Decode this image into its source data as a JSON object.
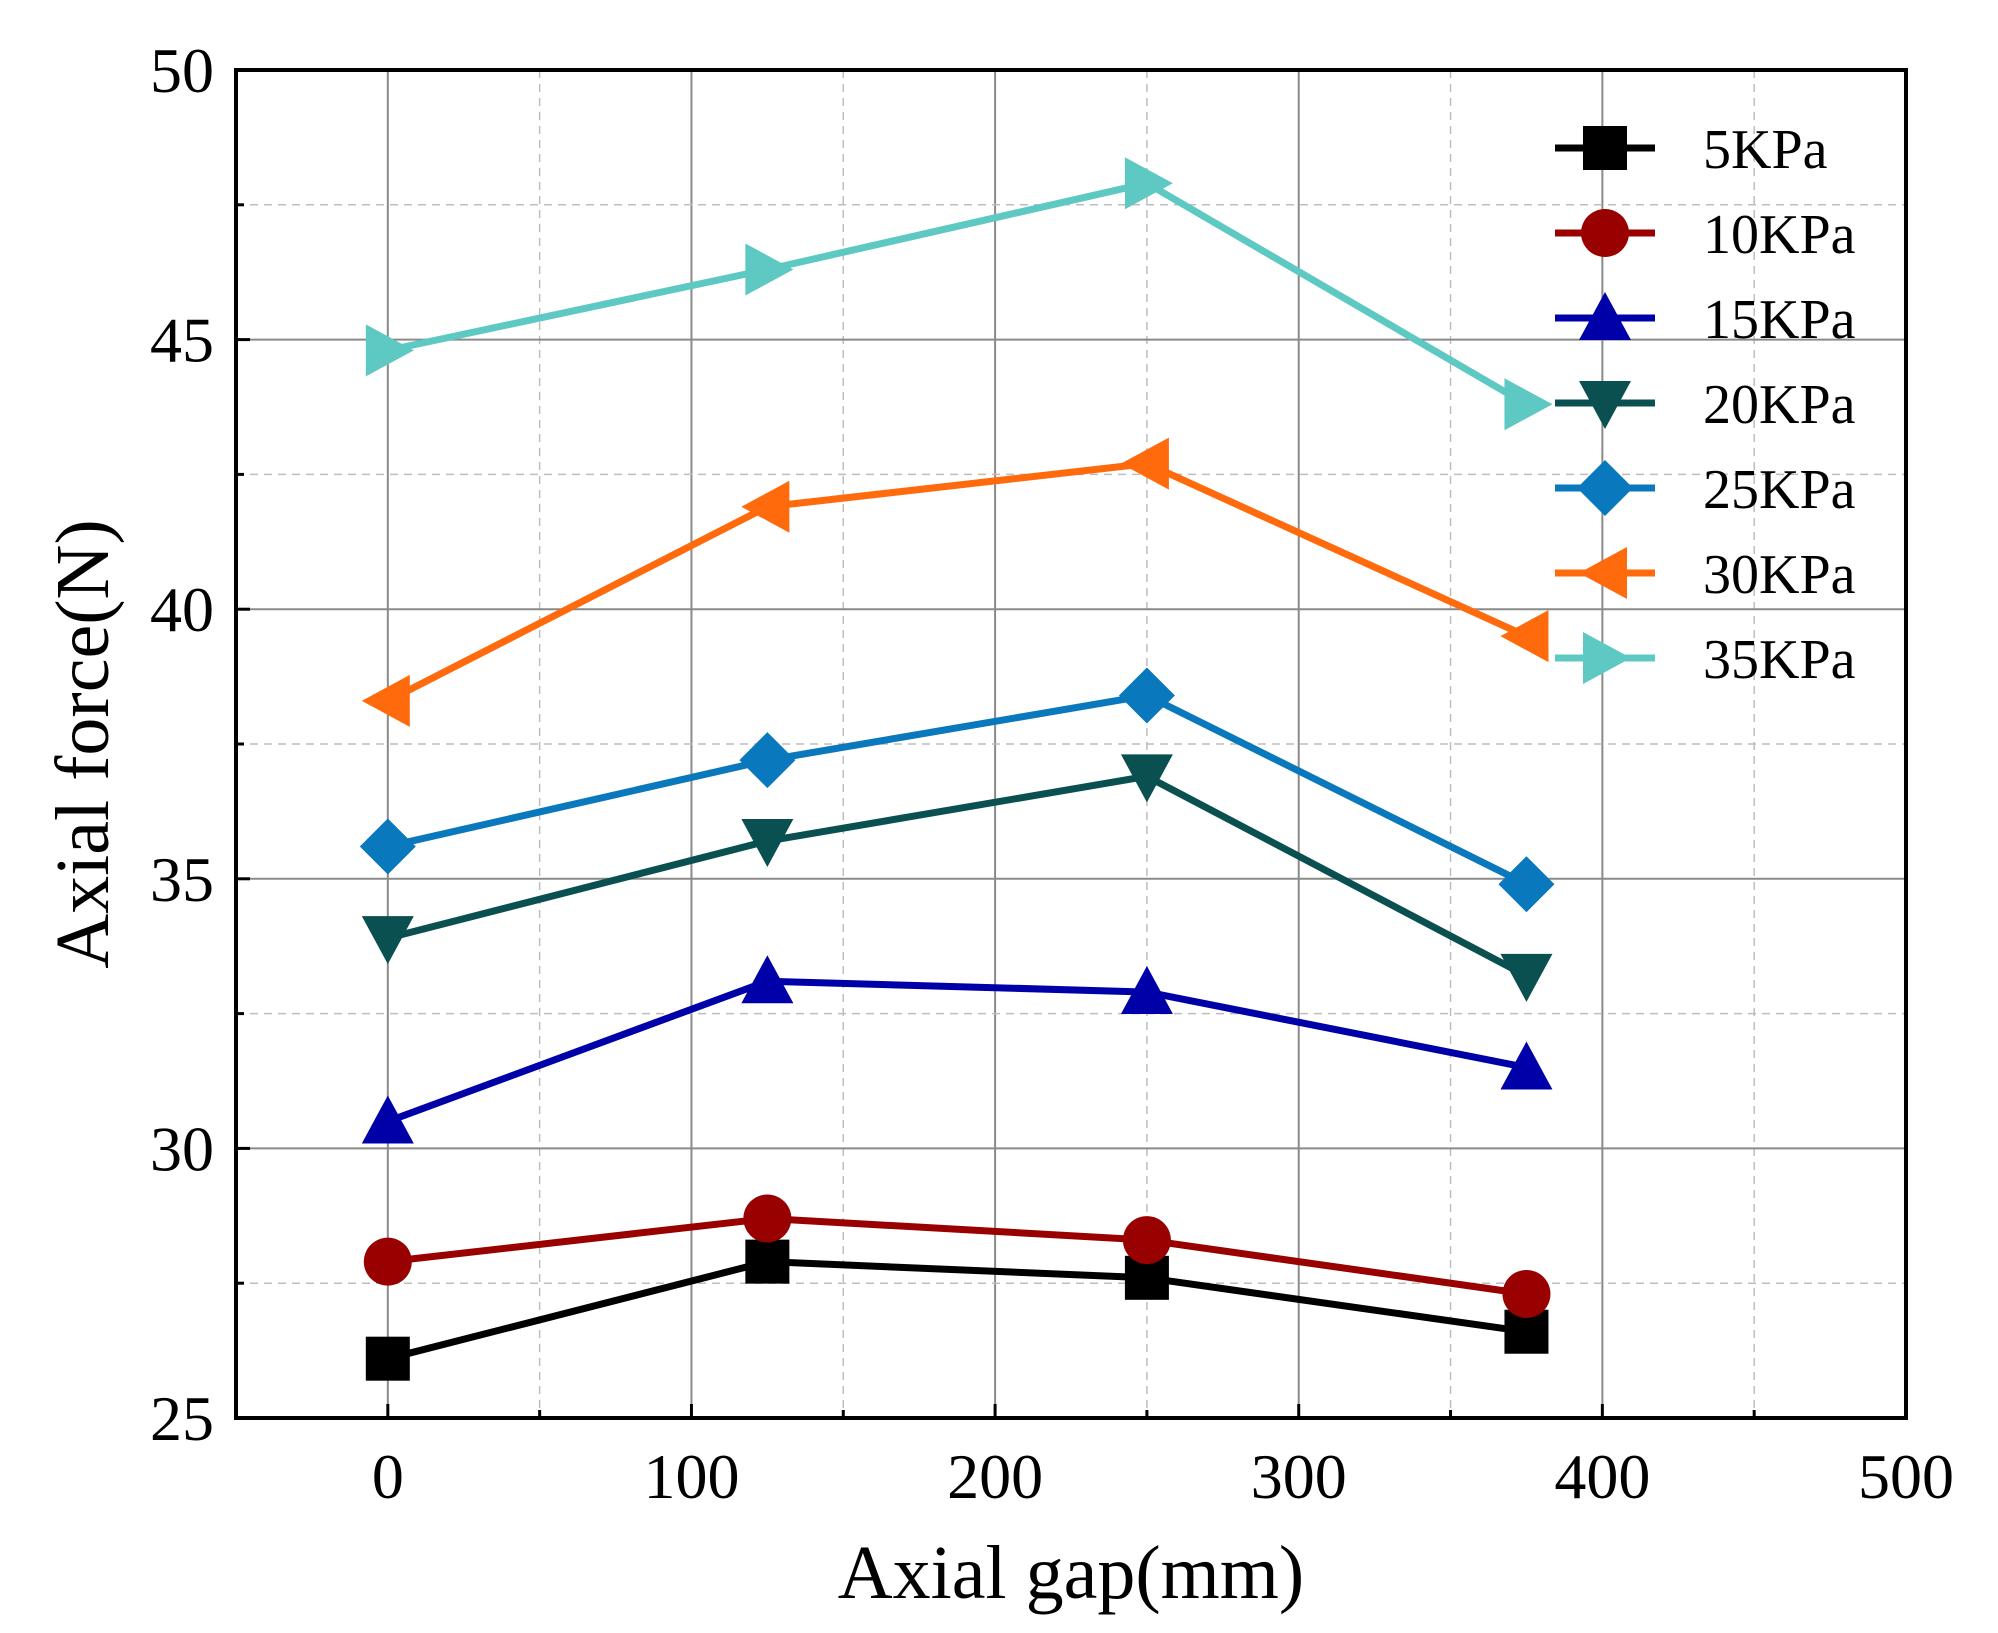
{
  "chart_data": {
    "type": "line",
    "title": "",
    "xlabel": "Axial gap(mm)",
    "ylabel": "Axial force(N)",
    "xlim": [
      -50,
      500
    ],
    "ylim": [
      25,
      50
    ],
    "x_major_ticks": [
      0,
      100,
      200,
      300,
      400,
      500
    ],
    "x_minor_ticks": [
      50,
      150,
      250,
      350,
      450
    ],
    "y_major_ticks": [
      25,
      30,
      35,
      40,
      45,
      50
    ],
    "y_minor_ticks": [
      27.5,
      32.5,
      37.5,
      42.5,
      47.5
    ],
    "x_tick_labels": [
      "0",
      "100",
      "200",
      "300",
      "400",
      "500"
    ],
    "y_tick_labels": [
      "25",
      "30",
      "35",
      "40",
      "45",
      "50"
    ],
    "grid": true,
    "legend_position": "top-right",
    "x": [
      0,
      125,
      250,
      375
    ],
    "series": [
      {
        "name": "5KPa",
        "marker": "square",
        "color": "#000000",
        "values": [
          26.1,
          27.9,
          27.6,
          26.6
        ]
      },
      {
        "name": "10KPa",
        "marker": "circle",
        "color": "#990000",
        "values": [
          27.9,
          28.7,
          28.3,
          27.3
        ]
      },
      {
        "name": "15KPa",
        "marker": "triangle-up",
        "color": "#0000a8",
        "values": [
          30.5,
          33.1,
          32.9,
          31.5
        ]
      },
      {
        "name": "20KPa",
        "marker": "triangle-down",
        "color": "#0a5050",
        "values": [
          33.9,
          35.7,
          36.9,
          33.2
        ]
      },
      {
        "name": "25KPa",
        "marker": "diamond",
        "color": "#0a78bd",
        "values": [
          35.6,
          37.2,
          38.4,
          34.9
        ]
      },
      {
        "name": "30KPa",
        "marker": "triangle-left",
        "color": "#ff6a0d",
        "values": [
          38.3,
          41.9,
          42.7,
          39.5
        ]
      },
      {
        "name": "35KPa",
        "marker": "triangle-right",
        "color": "#5ec8c2",
        "values": [
          44.8,
          46.3,
          47.9,
          43.8
        ]
      }
    ]
  }
}
